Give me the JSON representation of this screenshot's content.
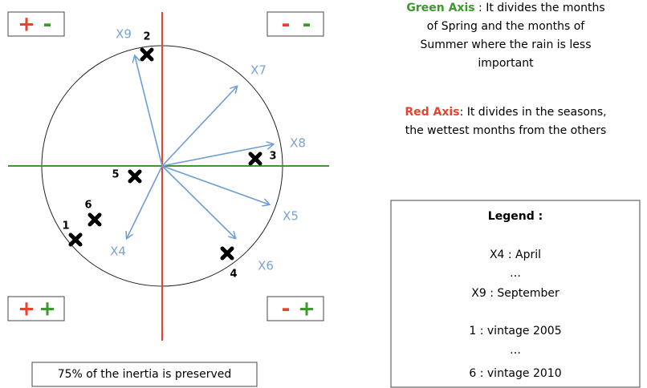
{
  "quadrants": [
    {
      "first": "+",
      "second": "-"
    },
    {
      "first": "-",
      "second": "-"
    },
    {
      "first": "+",
      "second": "+"
    },
    {
      "first": "-",
      "second": "+"
    }
  ],
  "variables": [
    "X9",
    "X7",
    "X8",
    "X5",
    "X6",
    "X4"
  ],
  "observations": [
    "2",
    "3",
    "5",
    "6",
    "1",
    "4"
  ],
  "inertia_note": "75% of the inertia is preserved",
  "green_axis": {
    "label": "Green Axis",
    "lines": [
      " : It divides the months",
      "of Spring and the months of",
      "Summer where the rain is less",
      "important"
    ]
  },
  "red_axis": {
    "label": "Red Axis",
    "lines": [
      ": It divides in the seasons,",
      "the wettest months from the others"
    ]
  },
  "legend": {
    "title": "Legend :",
    "lines": [
      "X4 : April",
      "…",
      "X9 : September",
      "1 : vintage 2005",
      "…",
      "6 : vintage 2010"
    ]
  }
}
